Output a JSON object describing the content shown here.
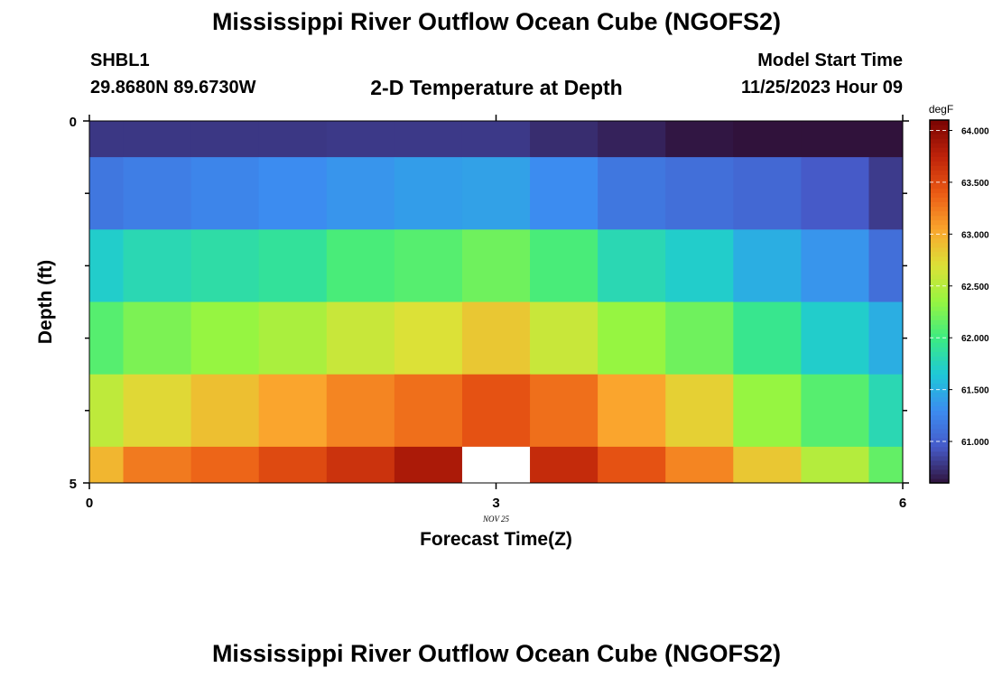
{
  "header": {
    "title": "Mississippi River Outflow Ocean Cube (NGOFS2)",
    "station_id": "SHBL1",
    "coordinates": "29.8680N  89.6730W",
    "subtitle": "2-D Temperature at Depth",
    "model_start_label": "Model Start Time",
    "model_start_value": "11/25/2023 Hour 09"
  },
  "footer": {
    "title": "Mississippi River Outflow Ocean Cube (NGOFS2)"
  },
  "chart_data": {
    "type": "heatmap",
    "title": "2-D Temperature at Depth",
    "xlabel": "Forecast Time(Z)",
    "ylabel": "Depth (ft)",
    "x_ticks": [
      "0",
      "3",
      "6"
    ],
    "x_sublabel": "NOV 25",
    "y_ticks": [
      "0",
      "5"
    ],
    "xlim": [
      0,
      6
    ],
    "ylim": [
      0,
      5
    ],
    "colorbar": {
      "unit": "degF",
      "ticks": [
        "61.000",
        "61.500",
        "62.000",
        "62.500",
        "63.000",
        "63.500",
        "64.000"
      ],
      "range": [
        60.6,
        64.1
      ]
    },
    "x_cell_edges": [
      0,
      0.25,
      0.75,
      1.25,
      1.75,
      2.25,
      2.75,
      3.25,
      3.75,
      4.25,
      4.75,
      5.25,
      5.75,
      6
    ],
    "depth_cell_edges": [
      0,
      0.5,
      1.5,
      2.5,
      3.5,
      4.5,
      5
    ],
    "values": [
      [
        60.78,
        60.78,
        60.78,
        60.78,
        60.79,
        60.79,
        60.79,
        60.73,
        60.68,
        60.62,
        60.55,
        60.45,
        60.4
      ],
      [
        61.15,
        61.2,
        61.25,
        61.3,
        61.35,
        61.4,
        61.42,
        61.3,
        61.15,
        61.1,
        61.05,
        60.95,
        60.8
      ],
      [
        61.7,
        61.8,
        61.85,
        61.9,
        62.05,
        62.1,
        62.2,
        62.05,
        61.8,
        61.7,
        61.5,
        61.35,
        61.1
      ],
      [
        62.1,
        62.25,
        62.35,
        62.45,
        62.6,
        62.7,
        62.85,
        62.6,
        62.35,
        62.2,
        61.95,
        61.7,
        61.5
      ],
      [
        62.55,
        62.75,
        62.9,
        63.05,
        63.2,
        63.3,
        63.45,
        63.3,
        63.05,
        62.8,
        62.35,
        62.1,
        61.8
      ],
      [
        62.95,
        63.25,
        63.35,
        63.5,
        63.65,
        63.85,
        null,
        63.7,
        63.45,
        63.2,
        62.85,
        62.5,
        62.15
      ]
    ]
  }
}
